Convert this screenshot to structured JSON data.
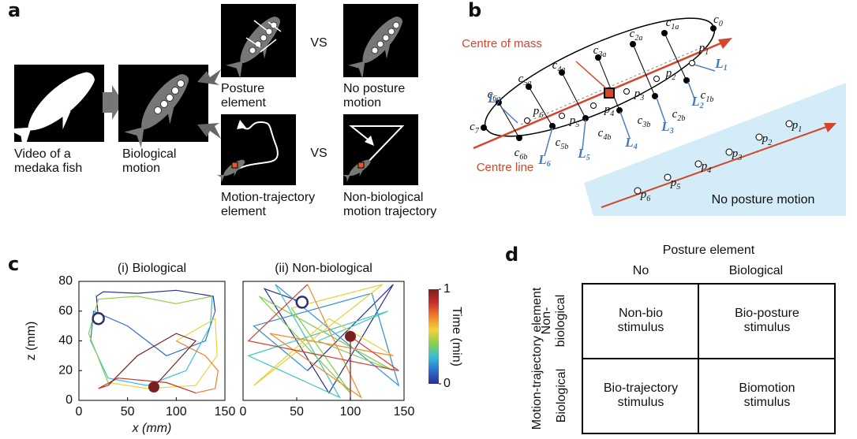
{
  "panel_a": {
    "label": "a",
    "captions": [
      [
        "Video of a",
        "medaka fish"
      ],
      [
        "Biological",
        "motion"
      ],
      [
        "Posture",
        "element"
      ],
      [
        "No posture",
        "motion"
      ],
      [
        "Motion-trajectory",
        "element"
      ],
      [
        "Non-biological",
        "motion trajectory"
      ]
    ],
    "vs": [
      "VS",
      "VS"
    ]
  },
  "panel_b": {
    "label": "b",
    "centre_of_mass": "Centre of mass",
    "centre_line": "Centre line",
    "no_posture_motion": "No posture motion",
    "body_labels": [
      {
        "base": "c",
        "sub": "0"
      },
      {
        "base": "c",
        "sub": "1a"
      },
      {
        "base": "c",
        "sub": "2a"
      },
      {
        "base": "c",
        "sub": "3a"
      },
      {
        "base": "c",
        "sub": "4a"
      },
      {
        "base": "c",
        "sub": "5a"
      },
      {
        "base": "c",
        "sub": "6a"
      },
      {
        "base": "c",
        "sub": "7"
      },
      {
        "base": "c",
        "sub": "6b"
      },
      {
        "base": "c",
        "sub": "5b"
      },
      {
        "base": "c",
        "sub": "4b"
      },
      {
        "base": "c",
        "sub": "3b"
      },
      {
        "base": "c",
        "sub": "2b"
      },
      {
        "base": "c",
        "sub": "1b"
      }
    ],
    "centre_points": [
      {
        "base": "p",
        "sub": "1"
      },
      {
        "base": "p",
        "sub": "2"
      },
      {
        "base": "p",
        "sub": "3"
      },
      {
        "base": "p",
        "sub": "4"
      },
      {
        "base": "p",
        "sub": "5"
      },
      {
        "base": "p",
        "sub": "6"
      }
    ],
    "lengths": [
      {
        "base": "L",
        "sub": "1"
      },
      {
        "base": "L",
        "sub": "2"
      },
      {
        "base": "L",
        "sub": "3"
      },
      {
        "base": "L",
        "sub": "4"
      },
      {
        "base": "L",
        "sub": "5"
      },
      {
        "base": "L",
        "sub": "6"
      },
      {
        "base": "L",
        "sub": "7"
      }
    ],
    "aligned_points": [
      {
        "base": "p",
        "sub": "1"
      },
      {
        "base": "p",
        "sub": "2"
      },
      {
        "base": "p",
        "sub": "3"
      },
      {
        "base": "p",
        "sub": "4"
      },
      {
        "base": "p",
        "sub": "5"
      },
      {
        "base": "p",
        "sub": "6"
      }
    ]
  },
  "panel_c": {
    "label": "c"
  },
  "chart_data": [
    {
      "type": "line",
      "title": "(i) Biological",
      "xlabel": "x (mm)",
      "ylabel": "z (mm)",
      "xlim": [
        0,
        150
      ],
      "xticks": [
        0,
        50,
        100,
        150
      ],
      "ylim": [
        0,
        80
      ],
      "yticks": [
        0,
        20,
        40,
        60,
        80
      ],
      "start": {
        "x": 20,
        "y": 55
      },
      "end": {
        "x": 77,
        "y": 9
      },
      "marker_colors": {
        "start": "#2c2e6e",
        "end": "#7b1f1f"
      },
      "series": [
        {
          "color": "#2b2f8f",
          "x": [
            20,
            18,
            25,
            60,
            100,
            138,
            140
          ],
          "values": [
            55,
            70,
            73,
            72,
            74,
            70,
            60
          ]
        },
        {
          "color": "#2e6fcf",
          "x": [
            140,
            130,
            90,
            50,
            15,
            12
          ],
          "values": [
            60,
            40,
            30,
            50,
            60,
            40
          ]
        },
        {
          "color": "#35c0d6",
          "x": [
            12,
            30,
            70,
            110,
            135,
            137
          ],
          "values": [
            40,
            15,
            10,
            20,
            50,
            70
          ]
        },
        {
          "color": "#8ccf4a",
          "x": [
            137,
            100,
            60,
            20,
            10,
            30
          ],
          "values": [
            70,
            65,
            70,
            68,
            45,
            12
          ]
        },
        {
          "color": "#f2d23a",
          "x": [
            30,
            70,
            120,
            142,
            140,
            100
          ],
          "values": [
            12,
            8,
            10,
            30,
            55,
            40
          ]
        },
        {
          "color": "#f07f2a",
          "x": [
            100,
            130,
            143,
            140,
            120
          ],
          "values": [
            40,
            30,
            20,
            8,
            5
          ]
        },
        {
          "color": "#c9302c",
          "x": [
            120,
            90,
            40,
            20,
            30
          ],
          "values": [
            5,
            12,
            15,
            8,
            10
          ]
        },
        {
          "color": "#7b1f1f",
          "x": [
            30,
            60,
            100,
            120,
            77
          ],
          "values": [
            10,
            30,
            45,
            40,
            9
          ]
        }
      ]
    },
    {
      "type": "line",
      "title": "(ii) Non-biological",
      "xlim": [
        0,
        150
      ],
      "xticks": [
        0,
        50,
        100,
        150
      ],
      "ylim": [
        0,
        80
      ],
      "start": {
        "x": 55,
        "y": 66
      },
      "end": {
        "x": 100,
        "y": 43
      },
      "marker_colors": {
        "start": "#2c2e6e",
        "end": "#7b1f1f"
      },
      "series": [
        {
          "color": "#2b2f8f",
          "x": [
            55,
            20,
            80,
            140,
            60
          ],
          "values": [
            66,
            75,
            5,
            78,
            20
          ]
        },
        {
          "color": "#2e8fd6",
          "x": [
            60,
            10,
            120,
            145,
            30
          ],
          "values": [
            20,
            50,
            72,
            10,
            78
          ]
        },
        {
          "color": "#3cc6c0",
          "x": [
            30,
            90,
            5,
            135,
            70
          ],
          "values": [
            78,
            2,
            30,
            60,
            40
          ]
        },
        {
          "color": "#7fcc4a",
          "x": [
            70,
            140,
            15,
            100,
            45
          ],
          "values": [
            40,
            20,
            70,
            5,
            62
          ]
        },
        {
          "color": "#e8d030",
          "x": [
            45,
            130,
            10,
            80,
            140
          ],
          "values": [
            62,
            78,
            10,
            55,
            30
          ]
        },
        {
          "color": "#f08a2a",
          "x": [
            140,
            25,
            110,
            60
          ],
          "values": [
            30,
            45,
            2,
            78
          ]
        },
        {
          "color": "#d83a2a",
          "x": [
            60,
            5,
            145,
            100
          ],
          "values": [
            78,
            40,
            20,
            43
          ]
        },
        {
          "color": "#7b1f1f",
          "x": [
            100,
            100
          ],
          "values": [
            0,
            43
          ]
        }
      ],
      "colorbar": {
        "label": "Time (min)",
        "lim": [
          0,
          1
        ],
        "ticks": [
          0,
          1
        ],
        "colors": [
          "#2b2f8f",
          "#2e6fcf",
          "#35c0d6",
          "#8ccf4a",
          "#f2d23a",
          "#f07f2a",
          "#c9302c",
          "#7b1f1f"
        ]
      }
    }
  ],
  "panel_d": {
    "label": "d",
    "column_title": "Posture element",
    "columns": [
      "No",
      "Biological"
    ],
    "row_title": "Motion-trajectory element",
    "rows": [
      [
        "Non-",
        "biological"
      ],
      [
        "Biological"
      ]
    ],
    "cells": [
      [
        [
          "Non-bio",
          "stimulus"
        ],
        [
          "Bio-posture",
          "stimulus"
        ]
      ],
      [
        [
          "Bio-trajectory",
          "stimulus"
        ],
        [
          "Biomotion",
          "stimulus"
        ]
      ]
    ]
  }
}
